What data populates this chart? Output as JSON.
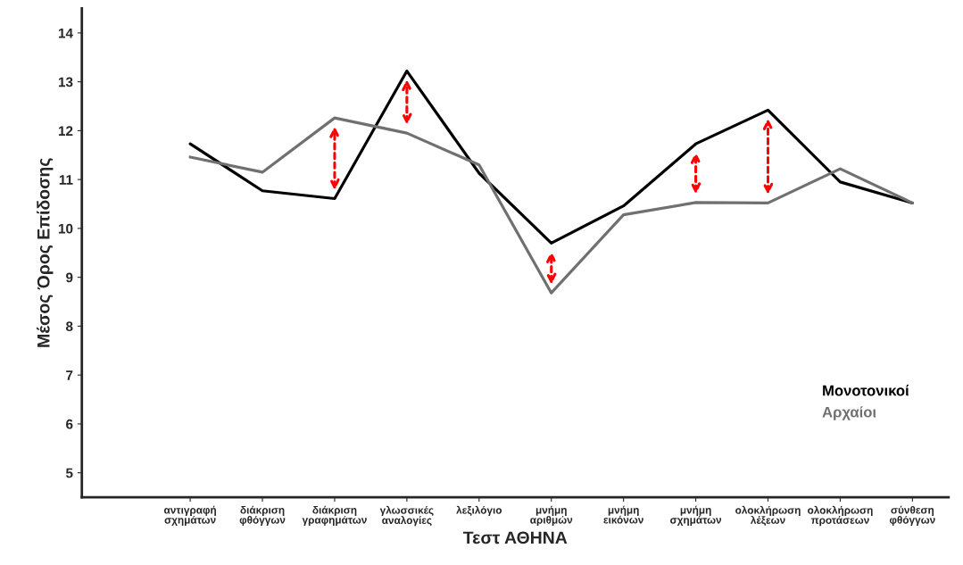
{
  "chart_data": {
    "type": "line",
    "xlabel": "Τεστ ΑΘΗΝΑ",
    "ylabel": "Μέσος Όρος Επίδοσης",
    "categories": [
      "αντιγραφή\nσχημάτων",
      "διάκριση\nφθόγγων",
      "διάκριση\nγραφημάτων",
      "γλωσσικές\nαναλογίες",
      "λεξιλόγιο",
      "μνήμη\nαριθμών",
      "μνήμη\nεικόνων",
      "μνήμη\nσχημάτων",
      "ολοκλήρωση\nλέξεων",
      "ολοκλήρωση\nπροτάσεων",
      "σύνθεση\nφθόγγων"
    ],
    "series": [
      {
        "name": "Μονοτονικοί",
        "color": "#000000",
        "values": [
          11.73,
          10.77,
          10.61,
          13.22,
          11.13,
          9.7,
          10.46,
          11.73,
          12.42,
          10.95,
          10.52
        ]
      },
      {
        "name": "Αρχαίοι",
        "color": "#707070",
        "values": [
          11.46,
          11.15,
          12.26,
          11.95,
          11.3,
          8.68,
          10.28,
          10.53,
          10.52,
          11.22,
          10.52
        ]
      }
    ],
    "ylim": [
      4.5,
      14.5
    ],
    "yticks": [
      5,
      6,
      7,
      8,
      9,
      10,
      11,
      12,
      13,
      14
    ],
    "grid": false,
    "legend": "bottom right",
    "marker": "none",
    "line_style": "solid"
  }
}
